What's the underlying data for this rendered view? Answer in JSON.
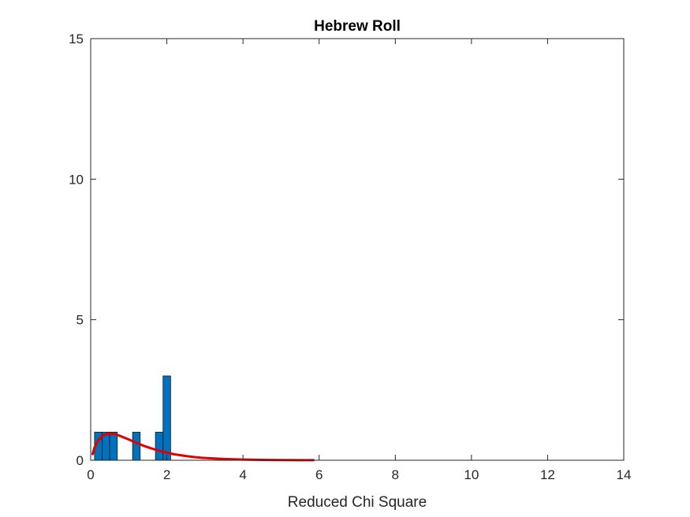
{
  "chart_data": {
    "type": "bar",
    "title": "Hebrew Roll",
    "xlabel": "Reduced Chi Square",
    "ylabel": "",
    "xlim": [
      0,
      14
    ],
    "ylim": [
      0,
      15
    ],
    "xticks": [
      0,
      2,
      4,
      6,
      8,
      10,
      12,
      14
    ],
    "yticks": [
      0,
      5,
      10,
      15
    ],
    "grid": false,
    "legend": "none",
    "bin_width": 0.2,
    "histogram": {
      "bin_edges": [
        [
          0.1,
          0.3
        ],
        [
          0.3,
          0.5
        ],
        [
          0.5,
          0.7
        ],
        [
          1.1,
          1.3
        ],
        [
          1.7,
          1.9
        ],
        [
          1.9,
          2.1
        ]
      ],
      "counts": [
        1,
        1,
        1,
        1,
        1,
        3
      ],
      "color": "#0072BD"
    },
    "fit_curve": {
      "color": "#E00000",
      "x": [
        0.05,
        0.1,
        0.2,
        0.3,
        0.4,
        0.5,
        0.6,
        0.7,
        0.8,
        1.0,
        1.2,
        1.4,
        1.6,
        1.8,
        2.0,
        2.2,
        2.5,
        2.8,
        3.0,
        3.5,
        4.0,
        4.5,
        5.0,
        5.5,
        5.85
      ],
      "y": [
        0.22,
        0.45,
        0.72,
        0.86,
        0.93,
        0.95,
        0.94,
        0.9,
        0.85,
        0.74,
        0.62,
        0.51,
        0.42,
        0.34,
        0.27,
        0.21,
        0.15,
        0.1,
        0.08,
        0.045,
        0.025,
        0.014,
        0.008,
        0.004,
        0.002
      ]
    }
  }
}
